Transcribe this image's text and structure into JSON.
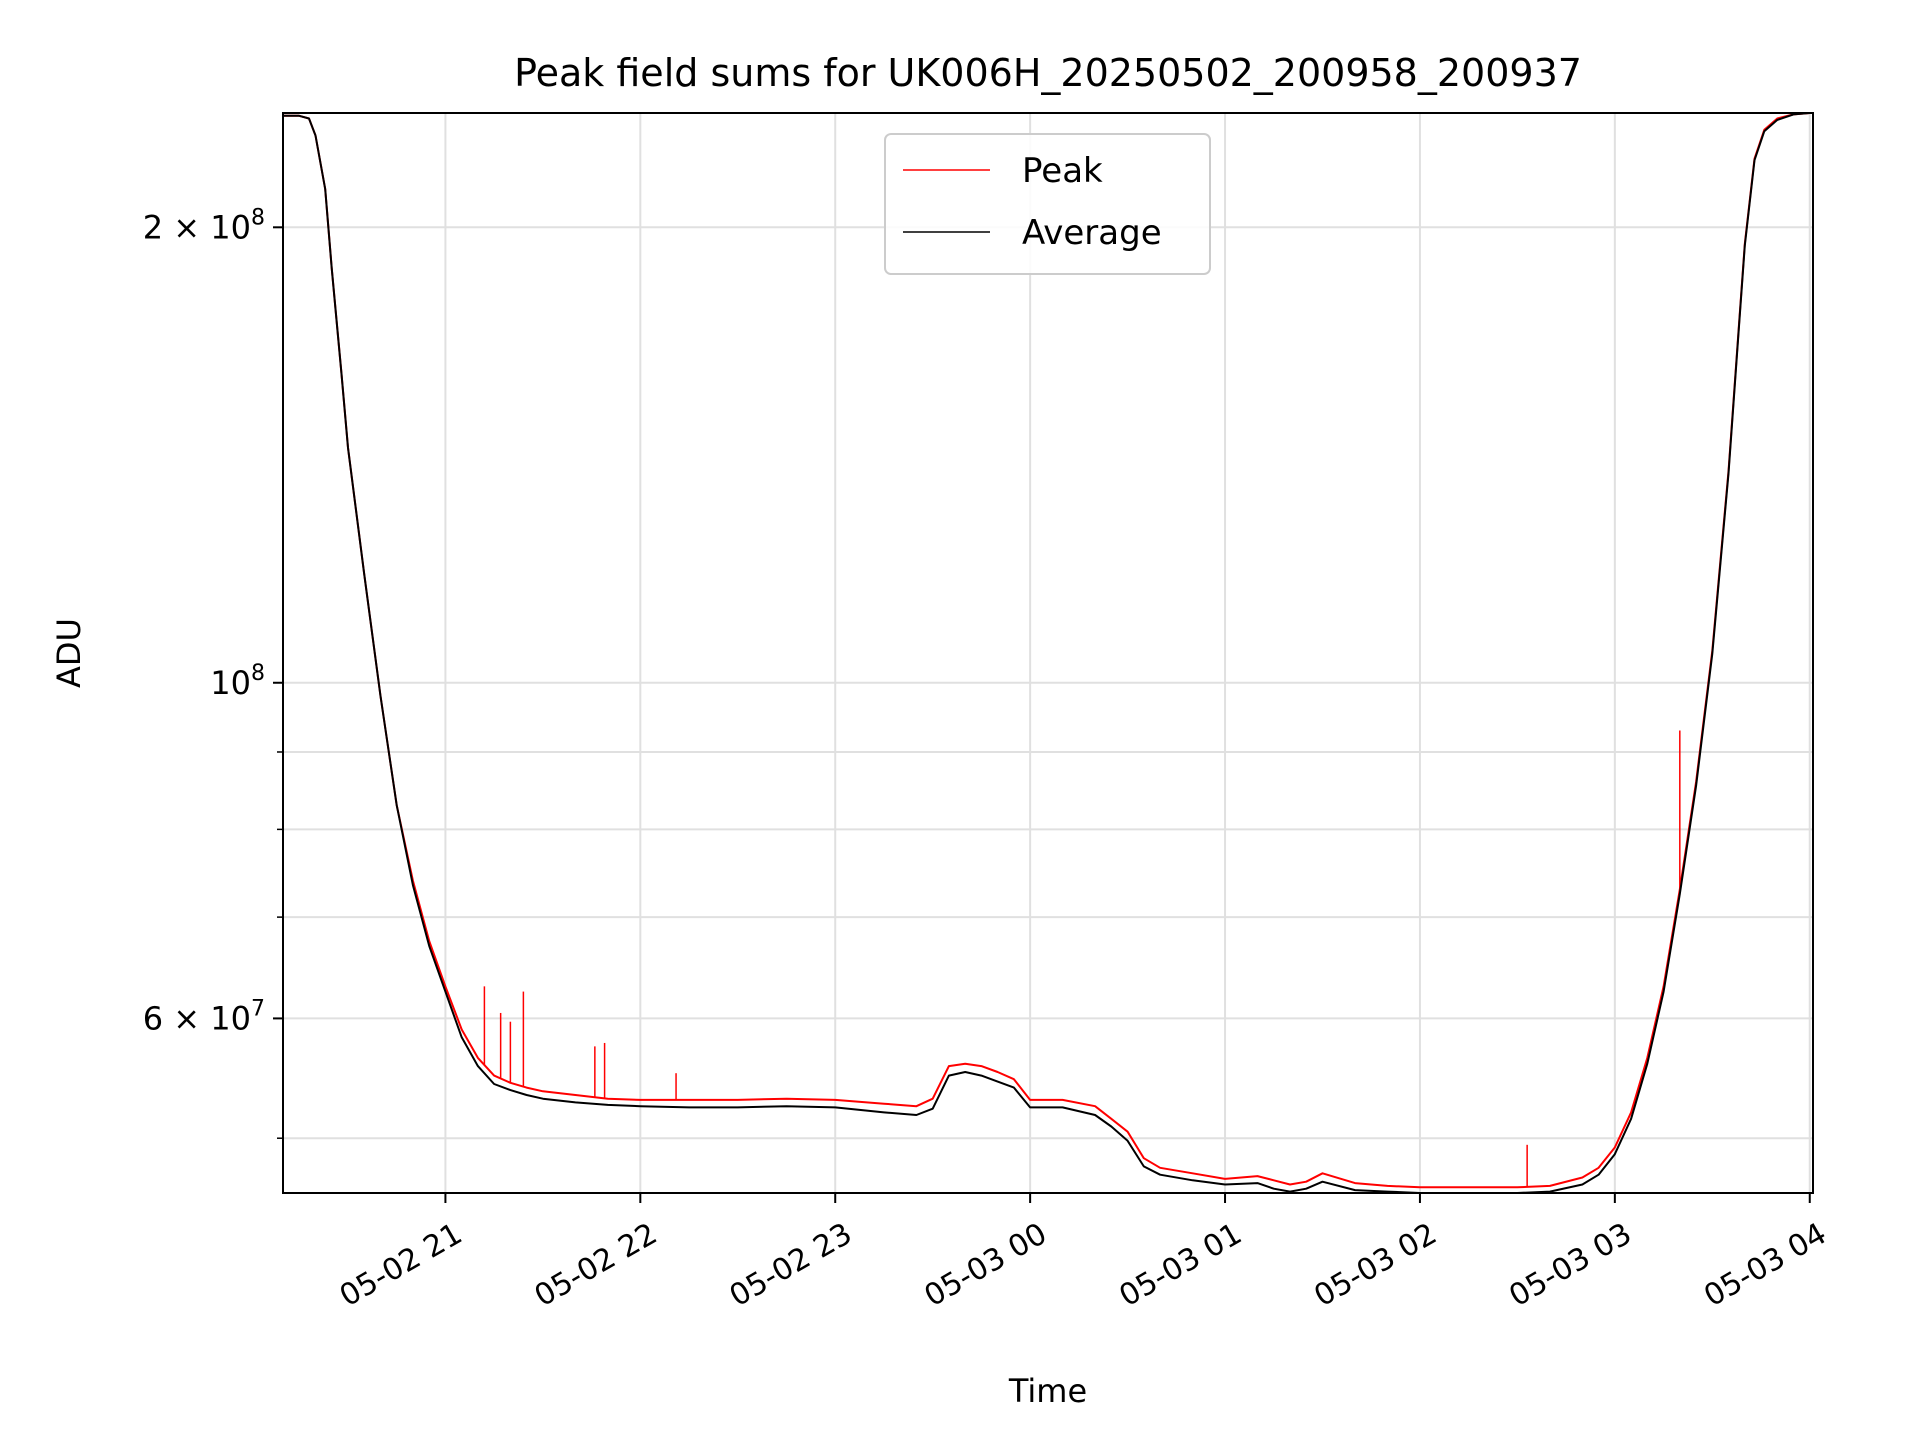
{
  "chart_data": {
    "type": "line",
    "title": "Peak field sums for UK006H_20250502_200958_200937",
    "xlabel": "Time",
    "ylabel": "ADU",
    "yscale": "log",
    "ylim": [
      46000000,
      238000000
    ],
    "xlim": [
      "2025-05-02 20:10",
      "2025-05-03 04:01"
    ],
    "grid": true,
    "legend_position": "upper center",
    "x_ticks": [
      {
        "value": "2025-05-02 21:00",
        "label": "05-02 21"
      },
      {
        "value": "2025-05-02 22:00",
        "label": "05-02 22"
      },
      {
        "value": "2025-05-02 23:00",
        "label": "05-02 23"
      },
      {
        "value": "2025-05-03 00:00",
        "label": "05-03 00"
      },
      {
        "value": "2025-05-03 01:00",
        "label": "05-03 01"
      },
      {
        "value": "2025-05-03 02:00",
        "label": "05-03 02"
      },
      {
        "value": "2025-05-03 03:00",
        "label": "05-03 03"
      },
      {
        "value": "2025-05-03 04:00",
        "label": "05-03 04"
      }
    ],
    "y_ticks": [
      {
        "value": 200000000,
        "mantissa": "2",
        "base": "10",
        "exp": "8"
      },
      {
        "value": 100000000,
        "mantissa": "",
        "base": "10",
        "exp": "8"
      },
      {
        "value": 60000000,
        "mantissa": "6",
        "base": "10",
        "exp": "7"
      }
    ],
    "y_minor_ticks": [
      50000000,
      70000000,
      80000000,
      90000000
    ],
    "series": [
      {
        "name": "Peak",
        "color": "#ff0000",
        "x": [
          "2025-05-02 20:10",
          "2025-05-02 20:15",
          "2025-05-02 20:18",
          "2025-05-02 20:20",
          "2025-05-02 20:23",
          "2025-05-02 20:25",
          "2025-05-02 20:28",
          "2025-05-02 20:30",
          "2025-05-02 20:35",
          "2025-05-02 20:40",
          "2025-05-02 20:45",
          "2025-05-02 20:50",
          "2025-05-02 20:55",
          "2025-05-02 21:00",
          "2025-05-02 21:05",
          "2025-05-02 21:10",
          "2025-05-02 21:15",
          "2025-05-02 21:20",
          "2025-05-02 21:25",
          "2025-05-02 21:30",
          "2025-05-02 21:40",
          "2025-05-02 21:50",
          "2025-05-02 22:00",
          "2025-05-02 22:15",
          "2025-05-02 22:30",
          "2025-05-02 22:45",
          "2025-05-02 23:00",
          "2025-05-02 23:15",
          "2025-05-02 23:25",
          "2025-05-02 23:30",
          "2025-05-02 23:35",
          "2025-05-02 23:40",
          "2025-05-02 23:45",
          "2025-05-02 23:50",
          "2025-05-02 23:55",
          "2025-05-03 00:00",
          "2025-05-03 00:10",
          "2025-05-03 00:20",
          "2025-05-03 00:25",
          "2025-05-03 00:30",
          "2025-05-03 00:35",
          "2025-05-03 00:40",
          "2025-05-03 00:50",
          "2025-05-03 01:00",
          "2025-05-03 01:10",
          "2025-05-03 01:15",
          "2025-05-03 01:20",
          "2025-05-03 01:25",
          "2025-05-03 01:30",
          "2025-05-03 01:40",
          "2025-05-03 01:50",
          "2025-05-03 02:00",
          "2025-05-03 02:15",
          "2025-05-03 02:30",
          "2025-05-03 02:40",
          "2025-05-03 02:50",
          "2025-05-03 02:55",
          "2025-05-03 03:00",
          "2025-05-03 03:05",
          "2025-05-03 03:10",
          "2025-05-03 03:15",
          "2025-05-03 03:20",
          "2025-05-03 03:25",
          "2025-05-03 03:30",
          "2025-05-03 03:35",
          "2025-05-03 03:38",
          "2025-05-03 03:40",
          "2025-05-03 03:43",
          "2025-05-03 03:46",
          "2025-05-03 03:50",
          "2025-05-03 03:55",
          "2025-05-03 04:00"
        ],
        "values": [
          237000000,
          237000000,
          236000000,
          230000000,
          212000000,
          188000000,
          160000000,
          143000000,
          118000000,
          98000000,
          83000000,
          74000000,
          67500000,
          63000000,
          59000000,
          56500000,
          55000000,
          54400000,
          54000000,
          53700000,
          53400000,
          53100000,
          53000000,
          53000000,
          53000000,
          53100000,
          53000000,
          52700000,
          52500000,
          53100000,
          55800000,
          56000000,
          55800000,
          55300000,
          54700000,
          53000000,
          53000000,
          52500000,
          51500000,
          50500000,
          48500000,
          47800000,
          47400000,
          47000000,
          47200000,
          46900000,
          46600000,
          46800000,
          47400000,
          46700000,
          46500000,
          46400000,
          46400000,
          46400000,
          46500000,
          47100000,
          47800000,
          49300000,
          52000000,
          56500000,
          63000000,
          73000000,
          86000000,
          105000000,
          138000000,
          170000000,
          195000000,
          222000000,
          232000000,
          236000000,
          237500000,
          238000000
        ],
        "spikes": [
          {
            "x": "2025-05-02 21:12",
            "y": 63000000
          },
          {
            "x": "2025-05-02 21:17",
            "y": 60500000
          },
          {
            "x": "2025-05-02 21:20",
            "y": 59700000
          },
          {
            "x": "2025-05-02 21:24",
            "y": 62500000
          },
          {
            "x": "2025-05-02 21:46",
            "y": 57500000
          },
          {
            "x": "2025-05-02 21:49",
            "y": 57800000
          },
          {
            "x": "2025-05-02 22:11",
            "y": 55200000
          },
          {
            "x": "2025-05-03 02:33",
            "y": 49500000
          },
          {
            "x": "2025-05-03 03:20",
            "y": 93000000
          }
        ]
      },
      {
        "name": "Average",
        "color": "#000000",
        "x": [
          "2025-05-02 20:10",
          "2025-05-02 20:15",
          "2025-05-02 20:18",
          "2025-05-02 20:20",
          "2025-05-02 20:23",
          "2025-05-02 20:25",
          "2025-05-02 20:28",
          "2025-05-02 20:30",
          "2025-05-02 20:35",
          "2025-05-02 20:40",
          "2025-05-02 20:45",
          "2025-05-02 20:50",
          "2025-05-02 20:55",
          "2025-05-02 21:00",
          "2025-05-02 21:05",
          "2025-05-02 21:10",
          "2025-05-02 21:15",
          "2025-05-02 21:20",
          "2025-05-02 21:25",
          "2025-05-02 21:30",
          "2025-05-02 21:40",
          "2025-05-02 21:50",
          "2025-05-02 22:00",
          "2025-05-02 22:15",
          "2025-05-02 22:30",
          "2025-05-02 22:45",
          "2025-05-02 23:00",
          "2025-05-02 23:15",
          "2025-05-02 23:25",
          "2025-05-02 23:30",
          "2025-05-02 23:35",
          "2025-05-02 23:40",
          "2025-05-02 23:45",
          "2025-05-02 23:50",
          "2025-05-02 23:55",
          "2025-05-03 00:00",
          "2025-05-03 00:10",
          "2025-05-03 00:20",
          "2025-05-03 00:25",
          "2025-05-03 00:30",
          "2025-05-03 00:35",
          "2025-05-03 00:40",
          "2025-05-03 00:50",
          "2025-05-03 01:00",
          "2025-05-03 01:10",
          "2025-05-03 01:15",
          "2025-05-03 01:20",
          "2025-05-03 01:25",
          "2025-05-03 01:30",
          "2025-05-03 01:40",
          "2025-05-03 01:50",
          "2025-05-03 02:00",
          "2025-05-03 02:15",
          "2025-05-03 02:30",
          "2025-05-03 02:40",
          "2025-05-03 02:50",
          "2025-05-03 02:55",
          "2025-05-03 03:00",
          "2025-05-03 03:05",
          "2025-05-03 03:10",
          "2025-05-03 03:15",
          "2025-05-03 03:20",
          "2025-05-03 03:25",
          "2025-05-03 03:30",
          "2025-05-03 03:35",
          "2025-05-03 03:38",
          "2025-05-03 03:40",
          "2025-05-03 03:43",
          "2025-05-03 03:46",
          "2025-05-03 03:50",
          "2025-05-03 03:55",
          "2025-05-03 04:00"
        ],
        "values": [
          237000000,
          237000000,
          236000000,
          230000000,
          212000000,
          188000000,
          160000000,
          143000000,
          118000000,
          98000000,
          83000000,
          73500000,
          67000000,
          62500000,
          58300000,
          55800000,
          54300000,
          53800000,
          53400000,
          53100000,
          52800000,
          52600000,
          52500000,
          52400000,
          52400000,
          52500000,
          52400000,
          52000000,
          51800000,
          52300000,
          55000000,
          55300000,
          55000000,
          54500000,
          54000000,
          52400000,
          52400000,
          51800000,
          50900000,
          49800000,
          47900000,
          47300000,
          46900000,
          46600000,
          46700000,
          46300000,
          46100000,
          46300000,
          46800000,
          46200000,
          46100000,
          46000000,
          46000000,
          46000000,
          46100000,
          46600000,
          47300000,
          48800000,
          51500000,
          56000000,
          62500000,
          72500000,
          85500000,
          104500000,
          137500000,
          169500000,
          194500000,
          221500000,
          231500000,
          235500000,
          237500000,
          238000000
        ]
      }
    ]
  }
}
